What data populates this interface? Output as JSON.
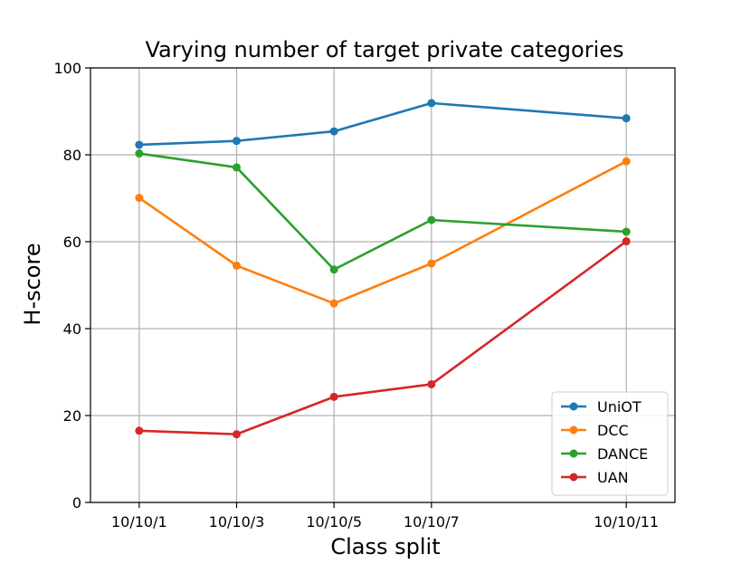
{
  "chart_data": {
    "type": "line",
    "title": "Varying number of target private categories",
    "xlabel": "Class split",
    "ylabel": "H-score",
    "x": [
      1,
      3,
      5,
      7,
      11
    ],
    "categories": [
      "10/10/1",
      "10/10/3",
      "10/10/5",
      "10/10/7",
      "10/10/11"
    ],
    "xlim": [
      0,
      12
    ],
    "ylim": [
      0,
      100
    ],
    "yticks": [
      "0",
      "20",
      "40",
      "60",
      "80",
      "100"
    ],
    "grid": true,
    "legend_position": "lower-right",
    "series": [
      {
        "name": "UniOT",
        "color": "#1f77b4",
        "values": [
          82.3,
          83.2,
          85.4,
          91.9,
          88.4
        ]
      },
      {
        "name": "DCC",
        "color": "#ff7f0e",
        "values": [
          70.1,
          54.5,
          45.8,
          55.0,
          78.5
        ]
      },
      {
        "name": "DANCE",
        "color": "#2ca02c",
        "values": [
          80.3,
          77.1,
          53.6,
          65.0,
          62.3
        ]
      },
      {
        "name": "UAN",
        "color": "#d62728",
        "values": [
          16.5,
          15.7,
          24.3,
          27.2,
          60.1
        ]
      }
    ]
  }
}
